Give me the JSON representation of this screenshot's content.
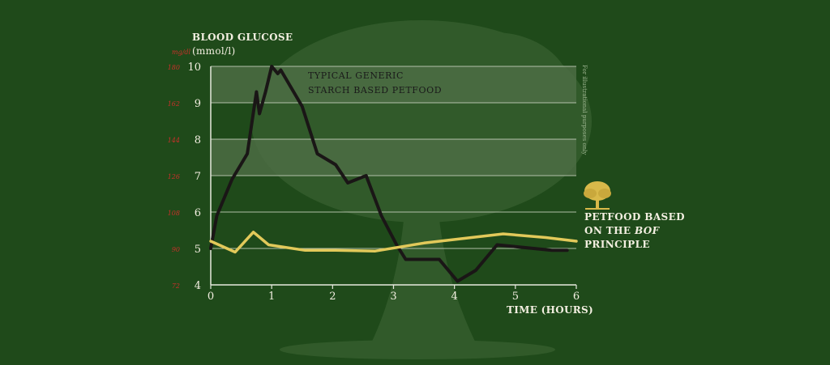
{
  "colors": {
    "background": "#1f4a1a",
    "band": "#4e6e45",
    "grid": "#c9d2c0",
    "series_typical": "#1a1616",
    "series_bof": "#e2c95a",
    "mg_labels": "#c8302a"
  },
  "icons": {
    "tree_logo": "tree-icon",
    "background_art": "tree-illustration"
  },
  "chart_data": {
    "type": "line",
    "ylabel_line1": "BLOOD GLUCOSE",
    "ylabel_line2": "(mmol/l)",
    "ylabel_mg_unit": "mg/dl",
    "xlabel": "TIME (HOURS)",
    "xlim": [
      0,
      6
    ],
    "ylim": [
      4,
      10
    ],
    "x_ticks": [
      "0",
      "1",
      "2",
      "3",
      "4",
      "5",
      "6"
    ],
    "y_ticks": [
      "4",
      "5",
      "6",
      "7",
      "8",
      "9",
      "10"
    ],
    "y_ticks_mgdl": [
      "72",
      "90",
      "108",
      "126",
      "144",
      "162",
      "180"
    ],
    "grid": true,
    "shaded_bands": [
      [
        7,
        8
      ],
      [
        9,
        10
      ]
    ],
    "side_note": "For illustrational purposes only",
    "series": [
      {
        "name": "TYPICAL GENERIC STARCH BASED PETFOOD",
        "name_line1": "TYPICAL GENERIC",
        "name_line2": "STARCH BASED PETFOOD",
        "color": "#1a1616",
        "points": [
          [
            0,
            5.0
          ],
          [
            0.1,
            5.9
          ],
          [
            0.35,
            6.9
          ],
          [
            0.6,
            7.6
          ],
          [
            0.75,
            9.3
          ],
          [
            0.8,
            8.7
          ],
          [
            0.9,
            9.3
          ],
          [
            1.0,
            10.0
          ],
          [
            1.1,
            9.8
          ],
          [
            1.15,
            9.9
          ],
          [
            1.5,
            8.9
          ],
          [
            1.75,
            7.6
          ],
          [
            2.05,
            7.3
          ],
          [
            2.25,
            6.8
          ],
          [
            2.4,
            6.9
          ],
          [
            2.55,
            7.0
          ],
          [
            2.8,
            5.9
          ],
          [
            3.05,
            5.1
          ],
          [
            3.2,
            4.7
          ],
          [
            3.45,
            4.7
          ],
          [
            3.75,
            4.7
          ],
          [
            4.05,
            4.1
          ],
          [
            4.35,
            4.4
          ],
          [
            4.7,
            5.1
          ],
          [
            5.0,
            5.05
          ],
          [
            5.3,
            5.0
          ],
          [
            5.6,
            4.95
          ],
          [
            5.85,
            4.95
          ]
        ]
      },
      {
        "name": "PETFOOD BASED ON THE BOF PRINCIPLE",
        "legend_line1": "PETFOOD BASED",
        "legend_line2_pre": "ON THE ",
        "legend_line2_em": "BOF",
        "legend_line3": "PRINCIPLE",
        "color": "#e2c95a",
        "points": [
          [
            0,
            5.2
          ],
          [
            0.4,
            4.9
          ],
          [
            0.7,
            5.45
          ],
          [
            0.95,
            5.1
          ],
          [
            1.55,
            4.95
          ],
          [
            2.05,
            4.95
          ],
          [
            2.7,
            4.93
          ],
          [
            3.5,
            5.15
          ],
          [
            4.8,
            5.4
          ],
          [
            5.5,
            5.3
          ],
          [
            6.0,
            5.2
          ]
        ]
      }
    ]
  }
}
